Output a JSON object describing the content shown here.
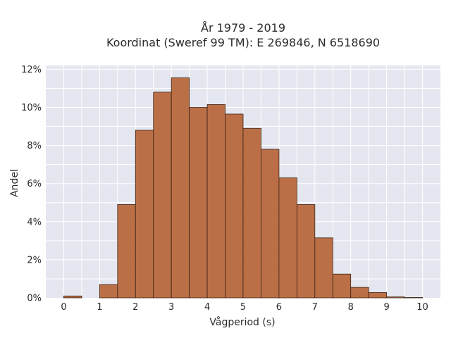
{
  "chart_data": {
    "type": "bar",
    "title_lines": [
      "År 1979 - 2019",
      "Koordinat (Sweref 99 TM): E 269846, N 6518690"
    ],
    "xlabel": "Vågperiod (s)",
    "ylabel": "Andel",
    "bin_width": 0.5,
    "bins_start": [
      0,
      0.5,
      1,
      1.5,
      2,
      2.5,
      3,
      3.5,
      4,
      4.5,
      5,
      5.5,
      6,
      6.5,
      7,
      7.5,
      8,
      8.5,
      9,
      9.5
    ],
    "values": [
      0.1,
      0.0,
      0.7,
      4.9,
      8.8,
      10.8,
      11.55,
      10.0,
      10.15,
      9.65,
      8.9,
      7.8,
      6.3,
      4.9,
      3.15,
      1.25,
      0.55,
      0.28,
      0.05,
      0.02
    ],
    "xlim": [
      -0.5,
      10.5
    ],
    "ylim": [
      0,
      12.2
    ],
    "x_ticks": [
      0,
      1,
      2,
      3,
      4,
      5,
      6,
      7,
      8,
      9,
      10
    ],
    "y_ticks": [
      0,
      2,
      4,
      6,
      8,
      10,
      12
    ],
    "y_tick_suffix": "%",
    "grid": true,
    "colors": {
      "bar_fill": "#b8683d",
      "bar_edge": "#3d2415",
      "plot_background": "#e5e7f0",
      "grid": "#ffffff"
    }
  }
}
